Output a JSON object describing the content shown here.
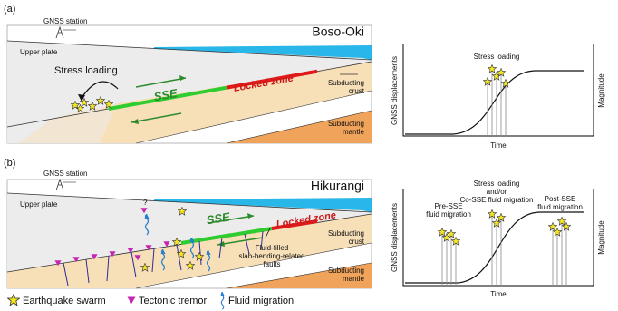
{
  "panel_a": {
    "label": "(a)",
    "gnss_station": "GNSS station",
    "site": "Boso-Oki",
    "upper_plate": "Upper plate",
    "stress_loading": "Stress loading",
    "sse": "SSE",
    "locked_zone": "Locked zone",
    "subducting_crust": [
      "Subducting",
      "crust"
    ],
    "subducting_mantle": [
      "Subducting",
      "mantle"
    ],
    "plot": {
      "annotation": "Stress loading",
      "y_axis": "GNSS displacements",
      "x_axis": "Time",
      "y2_axis": "Magnitude"
    }
  },
  "panel_b": {
    "label": "(b)",
    "gnss_station": "GNSS station",
    "site": "Hikurangi",
    "upper_plate": "Upper plate",
    "question": "?",
    "sse": "SSE",
    "locked_zone": "Locked zone",
    "faults": [
      "Fluid-filled",
      "slab-bending-related",
      "faults"
    ],
    "subducting_crust": [
      "Subducting",
      "crust"
    ],
    "subducting_mantle": [
      "Subducting",
      "mantle"
    ],
    "plot": {
      "annotations": [
        [
          "Pre-SSE",
          "fluid migration"
        ],
        [
          "Stress loading",
          "and/or",
          "Co-SSE fluid migration"
        ],
        [
          "Post-SSE",
          "fluid migration"
        ]
      ],
      "y_axis": "GNSS displacements",
      "x_axis": "Time",
      "y2_axis": "Magnitude"
    }
  },
  "legend": [
    "Earthquake swarm",
    "Tectonic tremor",
    "Fluid migration"
  ]
}
